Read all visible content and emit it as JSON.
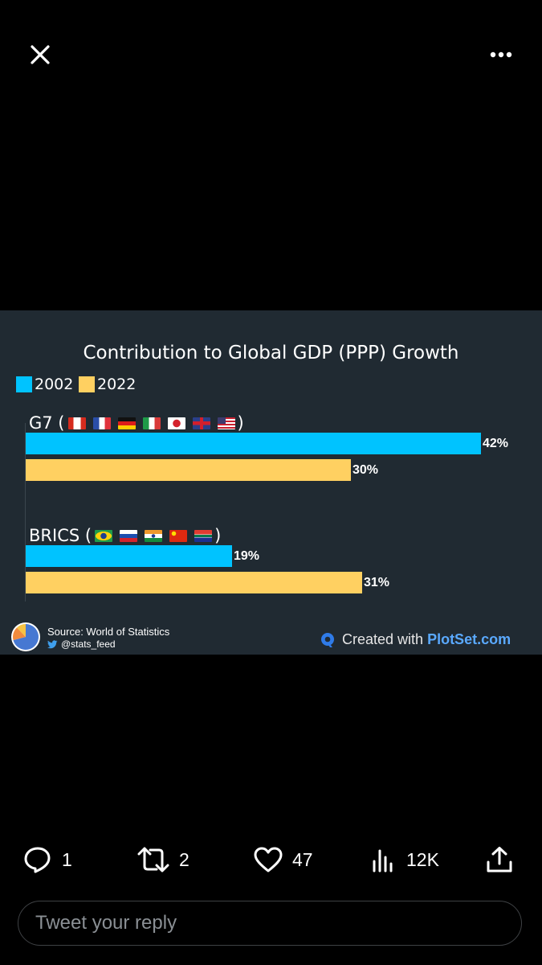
{
  "top_bar": {
    "close_icon": "close-icon",
    "more_icon": "more-options-icon"
  },
  "chart": {
    "colors": {
      "panel_bg": "#202a32",
      "series_2002": "#00c3ff",
      "series_2022": "#ffd061"
    }
  },
  "chart_data": {
    "type": "bar",
    "orientation": "horizontal",
    "title": "Contribution to Global GDP (PPP) Growth",
    "categories": [
      "G7",
      "BRICS"
    ],
    "category_labels": [
      "G7 (",
      "BRICS ("
    ],
    "category_label_close": ")",
    "flags": {
      "G7": [
        "Canada",
        "France",
        "Germany",
        "Italy",
        "Japan",
        "United Kingdom",
        "United States"
      ],
      "BRICS": [
        "Brazil",
        "Russia",
        "India",
        "China",
        "South Africa"
      ]
    },
    "series": [
      {
        "name": "2002",
        "values": [
          42,
          19
        ],
        "labels": [
          "42%",
          "19%"
        ]
      },
      {
        "name": "2022",
        "values": [
          30,
          31
        ],
        "labels": [
          "30%",
          "31%"
        ]
      }
    ],
    "xlim": [
      0,
      42
    ],
    "unit": "%"
  },
  "footer": {
    "source": "Source: World of Statistics",
    "handle": "@stats_feed",
    "created_with": "Created with",
    "brand": "PlotSet.com"
  },
  "actions": {
    "replies": "1",
    "retweets": "2",
    "likes": "47",
    "views": "12K"
  },
  "reply": {
    "placeholder": "Tweet your reply"
  }
}
